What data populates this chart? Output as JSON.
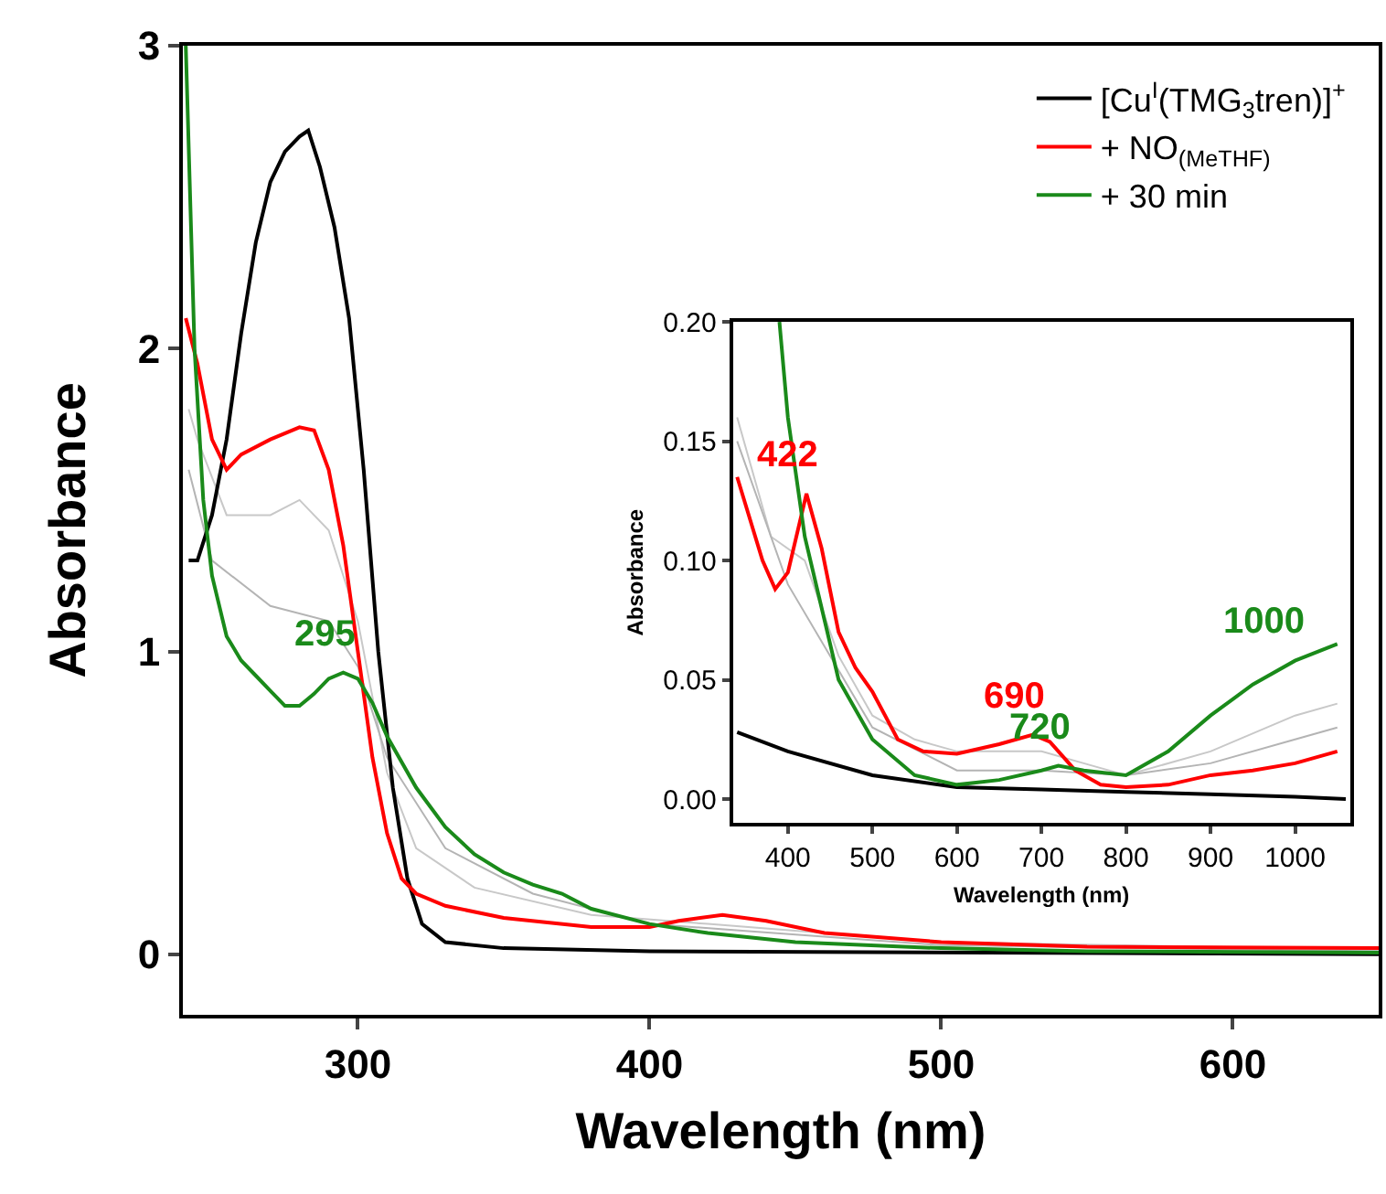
{
  "chart_data": [
    {
      "type": "line",
      "xlabel": "Wavelength (nm)",
      "ylabel": "Absorbance",
      "xlim": [
        240,
        650
      ],
      "ylim": [
        -0.2,
        3
      ],
      "xticks": [
        300,
        400,
        500,
        600
      ],
      "yticks": [
        0,
        1,
        2,
        3
      ],
      "legend": "top right",
      "marker": "none",
      "line_style": "solid",
      "series": [
        {
          "color": "#c8c8c8",
          "x": [
            242,
            245,
            255,
            270,
            280,
            290,
            300,
            310,
            320,
            340,
            380,
            420,
            500,
            650
          ],
          "values": [
            1.8,
            1.7,
            1.45,
            1.45,
            1.5,
            1.4,
            1.1,
            0.6,
            0.35,
            0.22,
            0.13,
            0.1,
            0.04,
            0.015
          ]
        },
        {
          "color": "#b4b4b4",
          "x": [
            242,
            250,
            270,
            290,
            300,
            310,
            330,
            360,
            400,
            500,
            650
          ],
          "values": [
            1.6,
            1.3,
            1.15,
            1.1,
            0.95,
            0.65,
            0.35,
            0.2,
            0.1,
            0.03,
            0.01
          ]
        },
        {
          "name": "[Cu$^{I}$(TMG$_{3}$tren)]$^{+}$",
          "color": "#000000",
          "x": [
            242,
            245,
            250,
            255,
            260,
            265,
            270,
            275,
            280,
            283,
            287,
            292,
            297,
            302,
            307,
            312,
            317,
            322,
            330,
            350,
            400,
            650
          ],
          "values": [
            1.3,
            1.3,
            1.45,
            1.7,
            2.05,
            2.35,
            2.55,
            2.65,
            2.7,
            2.72,
            2.6,
            2.4,
            2.1,
            1.6,
            1.0,
            0.55,
            0.25,
            0.1,
            0.04,
            0.02,
            0.01,
            0.0
          ]
        },
        {
          "name": "+ NO$_{(MeTHF)}$",
          "color": "#ff0000",
          "x": [
            241,
            245,
            250,
            255,
            260,
            270,
            280,
            285,
            290,
            295,
            300,
            305,
            310,
            315,
            320,
            330,
            350,
            380,
            400,
            410,
            425,
            440,
            460,
            500,
            550,
            650
          ],
          "values": [
            2.1,
            1.95,
            1.7,
            1.6,
            1.65,
            1.7,
            1.74,
            1.73,
            1.6,
            1.35,
            1.0,
            0.65,
            0.4,
            0.25,
            0.2,
            0.16,
            0.12,
            0.09,
            0.09,
            0.11,
            0.13,
            0.11,
            0.07,
            0.04,
            0.025,
            0.02
          ]
        },
        {
          "name": "+ 30 min",
          "color": "#1a8a1a",
          "x": [
            241,
            244,
            247,
            250,
            255,
            260,
            265,
            270,
            275,
            280,
            285,
            290,
            295,
            300,
            305,
            310,
            320,
            330,
            340,
            350,
            360,
            370,
            380,
            400,
            420,
            450,
            500,
            550,
            650
          ],
          "values": [
            3.0,
            2.0,
            1.5,
            1.25,
            1.05,
            0.97,
            0.92,
            0.87,
            0.82,
            0.82,
            0.86,
            0.91,
            0.93,
            0.91,
            0.83,
            0.72,
            0.55,
            0.42,
            0.33,
            0.27,
            0.23,
            0.2,
            0.15,
            0.1,
            0.07,
            0.04,
            0.02,
            0.01,
            0.005
          ]
        }
      ],
      "annotations": [
        {
          "text": "295",
          "x": 295,
          "y": 0.93
        }
      ]
    },
    {
      "type": "line",
      "xlabel": "Wavelength (nm)",
      "ylabel": "Absorbance",
      "xlim": [
        335,
        1065
      ],
      "ylim": [
        -0.01,
        0.2
      ],
      "xticks": [
        400,
        500,
        600,
        700,
        800,
        900,
        1000
      ],
      "yticks": [
        {
          "value": 0,
          "label": "0.00"
        },
        {
          "value": 0.05,
          "label": "0.05"
        },
        {
          "value": 0.1,
          "label": "0.10"
        },
        {
          "value": 0.15,
          "label": "0.15"
        },
        {
          "value": 0.2,
          "label": "0.20"
        }
      ],
      "marker": "none",
      "line_style": "solid",
      "series": [
        {
          "color": "#c8c8c8",
          "x": [
            340,
            380,
            420,
            460,
            500,
            550,
            600,
            700,
            750,
            800,
            900,
            1000,
            1050
          ],
          "values": [
            0.16,
            0.11,
            0.1,
            0.06,
            0.035,
            0.025,
            0.02,
            0.02,
            0.015,
            0.01,
            0.02,
            0.035,
            0.04
          ]
        },
        {
          "color": "#b4b4b4",
          "x": [
            340,
            400,
            450,
            500,
            600,
            700,
            800,
            900,
            1000,
            1050
          ],
          "values": [
            0.15,
            0.09,
            0.06,
            0.03,
            0.012,
            0.012,
            0.01,
            0.015,
            0.025,
            0.03
          ]
        },
        {
          "color": "#000000",
          "x": [
            340,
            400,
            500,
            600,
            700,
            800,
            900,
            1000,
            1060
          ],
          "values": [
            0.028,
            0.02,
            0.01,
            0.005,
            0.004,
            0.003,
            0.002,
            0.001,
            0.0
          ]
        },
        {
          "color": "#ff0000",
          "x": [
            340,
            370,
            385,
            400,
            422,
            440,
            460,
            480,
            500,
            530,
            560,
            600,
            650,
            690,
            710,
            740,
            770,
            800,
            850,
            900,
            950,
            1000,
            1050
          ],
          "values": [
            0.135,
            0.1,
            0.088,
            0.095,
            0.128,
            0.105,
            0.07,
            0.055,
            0.045,
            0.025,
            0.02,
            0.019,
            0.023,
            0.027,
            0.024,
            0.012,
            0.006,
            0.005,
            0.006,
            0.01,
            0.012,
            0.015,
            0.02
          ]
        },
        {
          "color": "#1a8a1a",
          "x": [
            390,
            400,
            420,
            440,
            460,
            500,
            550,
            600,
            650,
            700,
            720,
            750,
            800,
            850,
            900,
            950,
            1000,
            1050
          ],
          "values": [
            0.2,
            0.16,
            0.11,
            0.08,
            0.05,
            0.025,
            0.01,
            0.006,
            0.008,
            0.012,
            0.014,
            0.012,
            0.01,
            0.02,
            0.035,
            0.048,
            0.058,
            0.065
          ]
        }
      ],
      "annotations": [
        {
          "text": "422",
          "x": 422,
          "y": 0.128
        },
        {
          "text": "690",
          "x": 690,
          "y": 0.027
        },
        {
          "text": "720",
          "x": 720,
          "y": 0.014
        },
        {
          "text": "1000",
          "x": 1000,
          "y": 0.058
        }
      ]
    }
  ]
}
